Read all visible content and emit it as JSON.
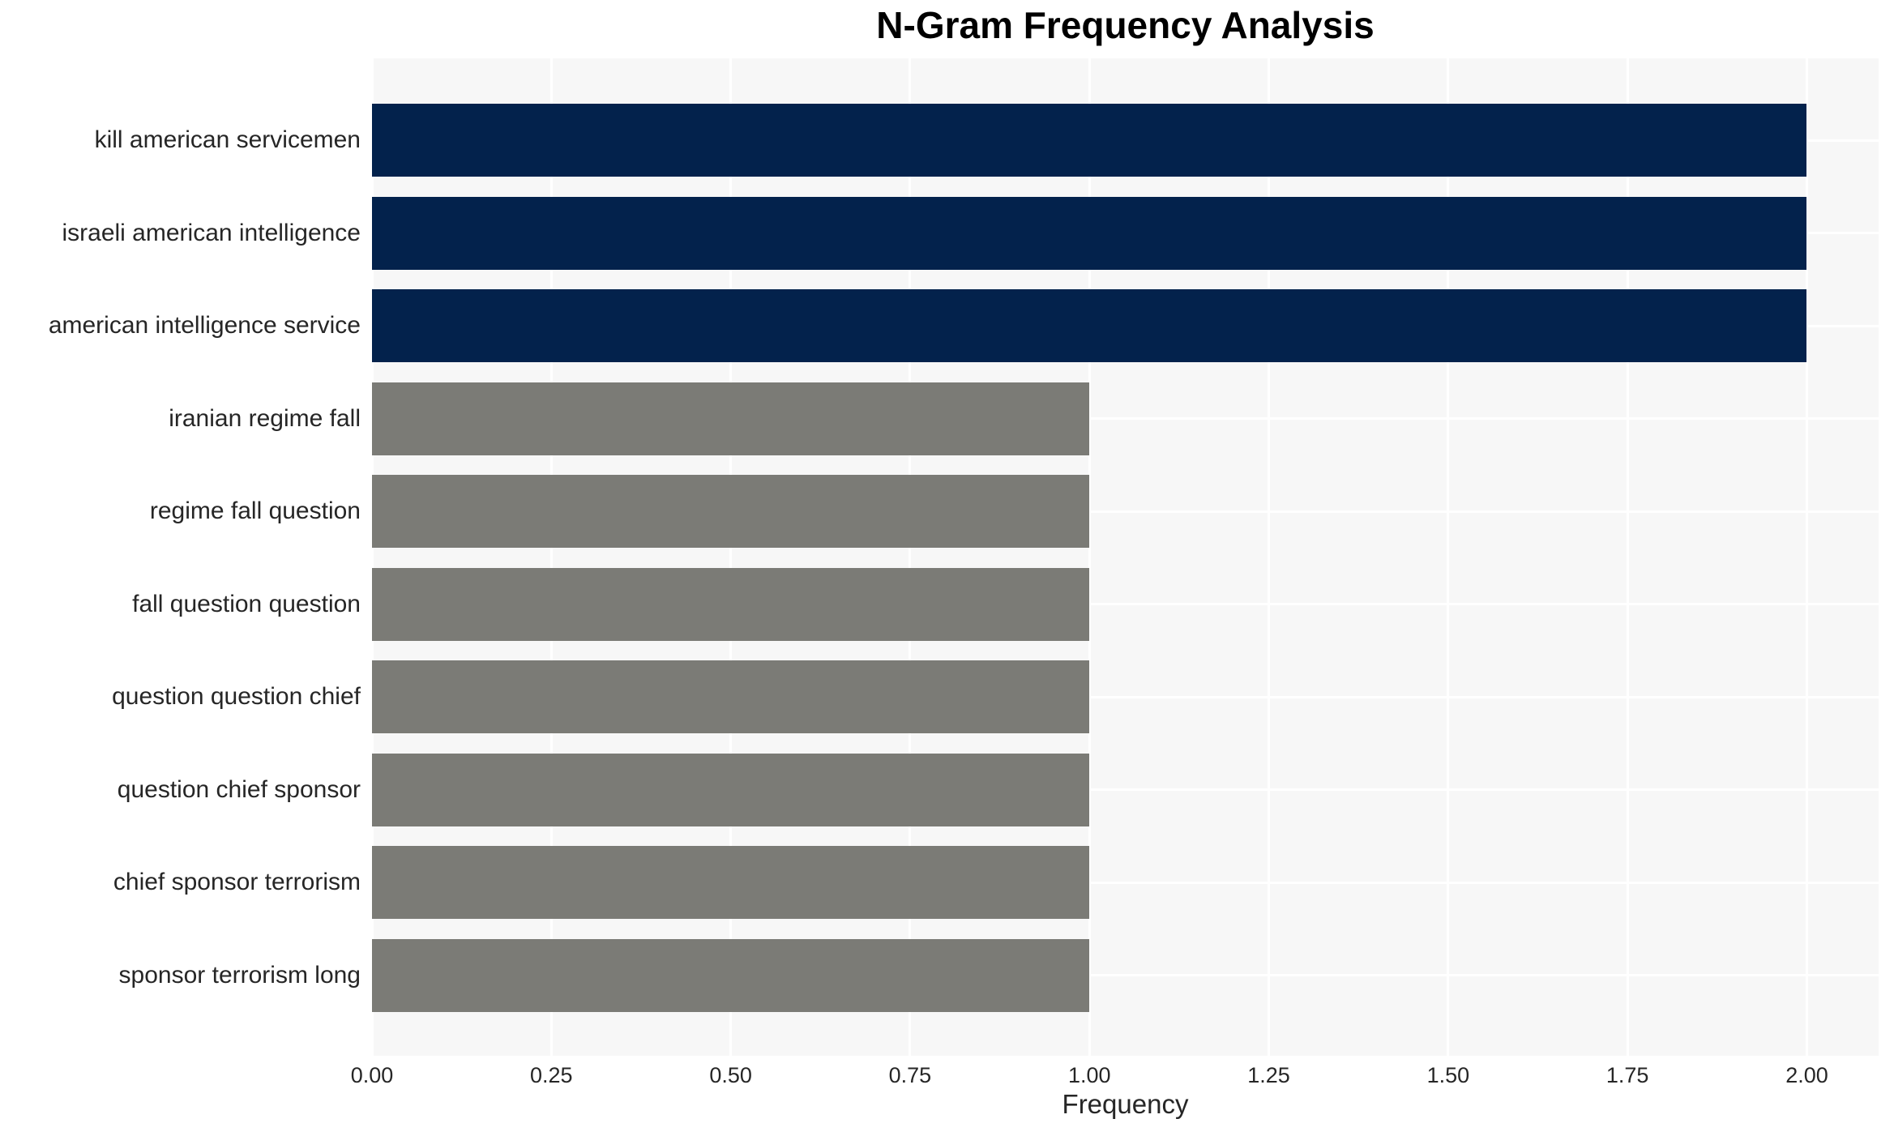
{
  "chart_data": {
    "type": "bar",
    "orientation": "horizontal",
    "title": "N-Gram Frequency Analysis",
    "xlabel": "Frequency",
    "ylabel": "",
    "categories": [
      "kill american servicemen",
      "israeli american intelligence",
      "american intelligence service",
      "iranian regime fall",
      "regime fall question",
      "fall question question",
      "question question chief",
      "question chief sponsor",
      "chief sponsor terrorism",
      "sponsor terrorism long"
    ],
    "values": [
      2,
      2,
      2,
      1,
      1,
      1,
      1,
      1,
      1,
      1
    ],
    "bar_colors": [
      "#03224C",
      "#03224C",
      "#03224C",
      "#7B7B76",
      "#7B7B76",
      "#7B7B76",
      "#7B7B76",
      "#7B7B76",
      "#7B7B76",
      "#7B7B76"
    ],
    "xlim": [
      0,
      2.1
    ],
    "xticks": [
      0.0,
      0.25,
      0.5,
      0.75,
      1.0,
      1.25,
      1.5,
      1.75,
      2.0
    ],
    "xtick_labels": [
      "0.00",
      "0.25",
      "0.50",
      "0.75",
      "1.00",
      "1.25",
      "1.50",
      "1.75",
      "2.00"
    ],
    "grid": true,
    "legend": false,
    "plot_bg_color": "#F7F7F7",
    "grid_color": "#FFFFFF"
  }
}
